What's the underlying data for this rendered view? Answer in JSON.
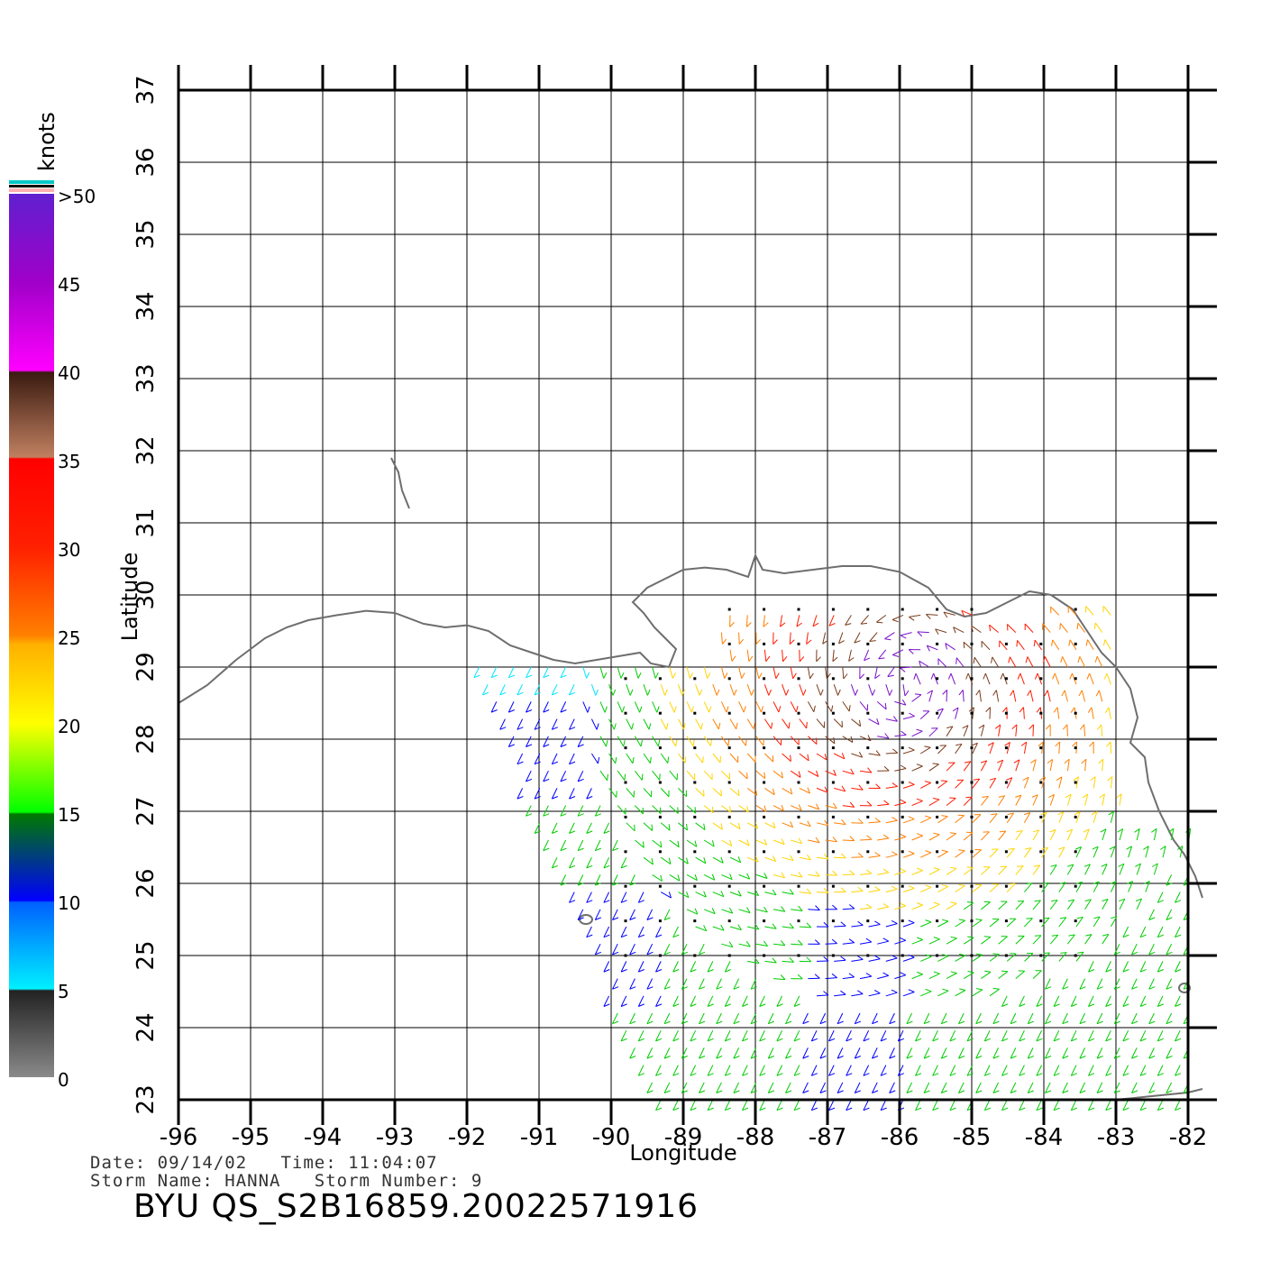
{
  "map": {
    "lon_range": [
      -96,
      -82
    ],
    "lat_range": [
      23,
      37
    ],
    "lon_ticks": [
      "-96",
      "-95",
      "-94",
      "-93",
      "-92",
      "-91",
      "-90",
      "-89",
      "-88",
      "-87",
      "-86",
      "-85",
      "-84",
      "-83",
      "-82"
    ],
    "lat_ticks": [
      "23",
      "24",
      "25",
      "26",
      "27",
      "28",
      "29",
      "30",
      "31",
      "32",
      "33",
      "34",
      "35",
      "36",
      "37"
    ],
    "xlabel": "Longitude",
    "ylabel": "Latitude",
    "grid": true,
    "coastline_color": "#6e6e6e"
  },
  "colorbar": {
    "title": "knots",
    "labels": [
      "0",
      "5",
      "10",
      "15",
      "20",
      "25",
      "30",
      "35",
      "40",
      "45",
      ">50"
    ],
    "colors": {
      "gray": "#808080",
      "cyan": "#00e5ff",
      "blue": "#0000ff",
      "green": "#00cc00",
      "yellow": "#ffd400",
      "orange": "#ff7f00",
      "red": "#ff1a00",
      "brown": "#7a3a1a",
      "magenta": "#ff00ff",
      "purple": "#7a10c8"
    }
  },
  "info": {
    "line1": "Date: 09/14/02   Time: 11:04:07",
    "line2": "Storm Name: HANNA   Storm Number: 9",
    "product": "BYU QS_S2B16859.20022571916"
  }
}
